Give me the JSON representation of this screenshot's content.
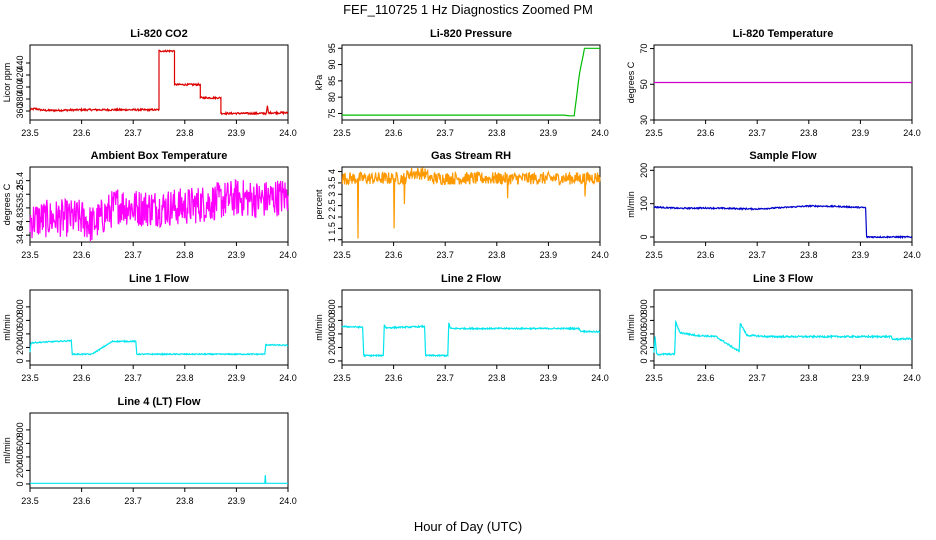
{
  "title": "FEF_110725  1 Hz Diagnostics Zoomed PM",
  "xlabel": "Hour of Day (UTC)",
  "colors": {
    "co2": "#dd0000",
    "pressure": "#00bb00",
    "temperature": "#cc00cc",
    "box_temp": "#ff00ff",
    "rh": "#ff9900",
    "sample_flow": "#0000cc",
    "line_flow": "#00e5ee"
  },
  "chart_data": [
    {
      "type": "line",
      "title": "Li-820 CO2",
      "xlabel": "",
      "ylabel": "Licor ppm",
      "xlim": [
        23.5,
        24.0
      ],
      "ylim": [
        345,
        470
      ],
      "xticks": [
        23.5,
        23.6,
        23.7,
        23.8,
        23.9,
        24.0
      ],
      "yticks": [
        360,
        380,
        400,
        420,
        440
      ],
      "series": [
        {
          "color": "#dd0000",
          "noise": 1.5,
          "x": [
            23.5,
            23.51,
            23.52,
            23.53,
            23.55,
            23.6,
            23.65,
            23.69,
            23.695,
            23.7,
            23.72,
            23.75,
            23.75,
            23.77,
            23.78,
            23.78,
            23.8,
            23.82,
            23.83,
            23.83,
            23.85,
            23.87,
            23.87,
            23.9,
            23.92,
            23.94,
            23.958,
            23.96,
            23.962,
            23.97,
            24.0
          ],
          "y": [
            362,
            364,
            362,
            361,
            361,
            362,
            362,
            362,
            362,
            362,
            362,
            362,
            460,
            460,
            460,
            404,
            404,
            404,
            404,
            382,
            382,
            382,
            356,
            356,
            356,
            356,
            356,
            368,
            357,
            357,
            357
          ]
        }
      ]
    },
    {
      "type": "line",
      "title": "Li-820 Pressure",
      "xlabel": "",
      "ylabel": "kPa",
      "xlim": [
        23.5,
        24.0
      ],
      "ylim": [
        73,
        96
      ],
      "xticks": [
        23.5,
        23.6,
        23.7,
        23.8,
        23.9,
        24.0
      ],
      "yticks": [
        75,
        80,
        85,
        90,
        95
      ],
      "series": [
        {
          "color": "#00bb00",
          "noise": 0,
          "x": [
            23.5,
            23.6,
            23.7,
            23.8,
            23.9,
            23.93,
            23.94,
            23.95,
            23.96,
            23.97,
            23.98,
            24.0
          ],
          "y": [
            74.5,
            74.5,
            74.5,
            74.5,
            74.5,
            74.5,
            74.3,
            74.3,
            87,
            95,
            95,
            95
          ]
        }
      ]
    },
    {
      "type": "line",
      "title": "Li-820 Temperature",
      "xlabel": "",
      "ylabel": "degrees C",
      "xlim": [
        23.5,
        24.0
      ],
      "ylim": [
        30,
        72
      ],
      "xticks": [
        23.5,
        23.6,
        23.7,
        23.8,
        23.9,
        24.0
      ],
      "yticks": [
        30,
        50,
        70
      ],
      "series": [
        {
          "color": "#cc00cc",
          "noise": 0,
          "x": [
            23.5,
            24.0
          ],
          "y": [
            51,
            51
          ]
        }
      ]
    },
    {
      "type": "line",
      "title": "Ambient Box Temperature",
      "xlabel": "",
      "ylabel": "degrees C",
      "xlim": [
        23.5,
        24.0
      ],
      "ylim": [
        34.5,
        35.6
      ],
      "xticks": [
        23.5,
        23.6,
        23.7,
        23.8,
        23.9,
        24.0
      ],
      "yticks": [
        34.6,
        34.8,
        35.0,
        35.2,
        35.4
      ],
      "series": [
        {
          "color": "#ff00ff",
          "noise": 0.28,
          "x": [
            23.5,
            23.55,
            23.6,
            23.62,
            23.67,
            23.7,
            23.75,
            23.8,
            23.85,
            23.9,
            23.95,
            24.0
          ],
          "y": [
            34.82,
            34.85,
            34.85,
            34.75,
            35.05,
            35.0,
            35.0,
            35.02,
            35.08,
            35.15,
            35.12,
            35.18
          ]
        }
      ]
    },
    {
      "type": "line",
      "title": "Gas Stream RH",
      "xlabel": "",
      "ylabel": "percent",
      "xlim": [
        23.5,
        24.0
      ],
      "ylim": [
        0.9,
        4.2
      ],
      "xticks": [
        23.5,
        23.6,
        23.7,
        23.8,
        23.9,
        24.0
      ],
      "yticks": [
        1.0,
        1.5,
        2.0,
        2.5,
        3.0,
        3.5,
        4.0
      ],
      "series": [
        {
          "color": "#ff9900",
          "noise": 0.28,
          "x": [
            23.5,
            23.53,
            23.531,
            23.532,
            23.6,
            23.601,
            23.602,
            23.615,
            23.62,
            23.621,
            23.622,
            23.63,
            23.66,
            23.67,
            23.8,
            23.82,
            23.821,
            23.822,
            23.9,
            23.97,
            23.971,
            23.972,
            24.0
          ],
          "y": [
            3.7,
            3.7,
            1.05,
            3.7,
            3.7,
            1.5,
            3.7,
            3.7,
            3.7,
            2.4,
            3.7,
            3.92,
            3.92,
            3.7,
            3.7,
            3.7,
            2.9,
            3.7,
            3.7,
            3.7,
            3.0,
            3.7,
            3.75
          ]
        }
      ]
    },
    {
      "type": "line",
      "title": "Sample Flow",
      "xlabel": "",
      "ylabel": "ml/min",
      "xlim": [
        23.5,
        24.0
      ],
      "ylim": [
        -15,
        210
      ],
      "xticks": [
        23.5,
        23.6,
        23.7,
        23.8,
        23.9,
        24.0
      ],
      "yticks": [
        0,
        100,
        200
      ],
      "series": [
        {
          "color": "#0000cc",
          "noise": 2,
          "x": [
            23.5,
            23.55,
            23.6,
            23.7,
            23.8,
            23.85,
            23.91,
            23.912,
            23.92,
            24.0
          ],
          "y": [
            90,
            86,
            87,
            84,
            93,
            92,
            88,
            0,
            0,
            0
          ]
        }
      ]
    },
    {
      "type": "line",
      "title": "Line 1 Flow",
      "xlabel": "",
      "ylabel": "ml/min",
      "xlim": [
        23.5,
        24.0
      ],
      "ylim": [
        -60,
        1050
      ],
      "xticks": [
        23.5,
        23.6,
        23.7,
        23.8,
        23.9,
        24.0
      ],
      "yticks": [
        0,
        200,
        400,
        600,
        800
      ],
      "series": [
        {
          "color": "#00e5ee",
          "noise": 8,
          "x": [
            23.5,
            23.502,
            23.505,
            23.58,
            23.582,
            23.62,
            23.66,
            23.705,
            23.707,
            23.8,
            23.9,
            23.955,
            23.957,
            24.0
          ],
          "y": [
            130,
            270,
            270,
            300,
            100,
            100,
            290,
            290,
            100,
            100,
            100,
            100,
            240,
            230
          ]
        }
      ]
    },
    {
      "type": "line",
      "title": "Line 2 Flow",
      "xlabel": "",
      "ylabel": "ml/min",
      "xlim": [
        23.5,
        24.0
      ],
      "ylim": [
        -60,
        1050
      ],
      "xticks": [
        23.5,
        23.6,
        23.7,
        23.8,
        23.9,
        24.0
      ],
      "yticks": [
        0,
        200,
        400,
        600,
        800
      ],
      "series": [
        {
          "color": "#00e5ee",
          "noise": 10,
          "x": [
            23.5,
            23.54,
            23.542,
            23.58,
            23.582,
            23.585,
            23.66,
            23.662,
            23.705,
            23.707,
            23.71,
            23.8,
            23.9,
            23.96,
            23.962,
            24.0
          ],
          "y": [
            510,
            500,
            80,
            80,
            540,
            490,
            510,
            80,
            80,
            570,
            480,
            480,
            480,
            480,
            440,
            430
          ]
        }
      ]
    },
    {
      "type": "line",
      "title": "Line 3 Flow",
      "xlabel": "",
      "ylabel": "ml/min",
      "xlim": [
        23.5,
        24.0
      ],
      "ylim": [
        -60,
        1050
      ],
      "xticks": [
        23.5,
        23.6,
        23.7,
        23.8,
        23.9,
        24.0
      ],
      "yticks": [
        0,
        200,
        400,
        600,
        800
      ],
      "series": [
        {
          "color": "#00e5ee",
          "noise": 12,
          "x": [
            23.5,
            23.502,
            23.505,
            23.54,
            23.542,
            23.55,
            23.58,
            23.62,
            23.665,
            23.667,
            23.68,
            23.72,
            23.8,
            23.9,
            23.96,
            23.962,
            24.0
          ],
          "y": [
            120,
            360,
            100,
            100,
            580,
            420,
            380,
            360,
            140,
            560,
            380,
            360,
            360,
            360,
            360,
            320,
            330
          ]
        }
      ]
    },
    {
      "type": "line",
      "title": "Line 4 (LT) Flow",
      "xlabel": "",
      "ylabel": "ml/min",
      "xlim": [
        23.5,
        24.0
      ],
      "ylim": [
        -60,
        1050
      ],
      "xticks": [
        23.5,
        23.6,
        23.7,
        23.8,
        23.9,
        24.0
      ],
      "yticks": [
        0,
        200,
        400,
        600,
        800
      ],
      "series": [
        {
          "color": "#00e5ee",
          "noise": 0,
          "x": [
            23.5,
            23.955,
            23.956,
            23.957,
            23.958,
            24.0
          ],
          "y": [
            10,
            10,
            130,
            10,
            10,
            10
          ]
        }
      ]
    }
  ]
}
